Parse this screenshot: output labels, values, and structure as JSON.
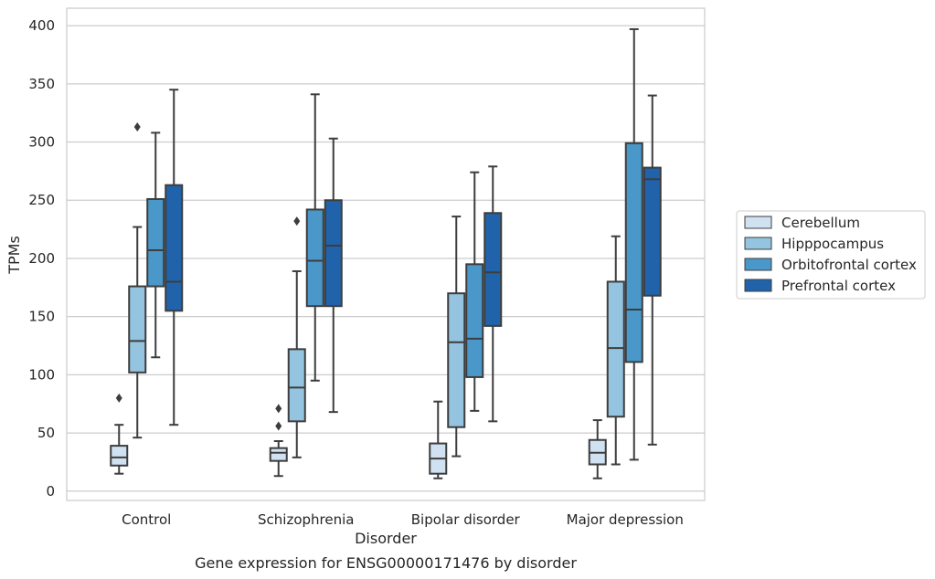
{
  "chart_data": {
    "type": "box",
    "caption": "Gene expression for ENSG00000171476 by disorder",
    "xlabel": "Disorder",
    "ylabel": "TPMs",
    "ylim": [
      -8,
      415
    ],
    "yticks": [
      0,
      50,
      100,
      150,
      200,
      250,
      300,
      350,
      400
    ],
    "grid": true,
    "legend_position": "right",
    "categories": [
      "Control",
      "Schizophrenia",
      "Bipolar disorder",
      "Major depression"
    ],
    "series": [
      {
        "name": "Cerebellum",
        "color": "#d0e1f2",
        "boxes": [
          {
            "whisker_low": 15,
            "q1": 22,
            "median": 29,
            "q3": 39,
            "whisker_high": 57,
            "outliers": [
              80
            ]
          },
          {
            "whisker_low": 13,
            "q1": 26,
            "median": 33,
            "q3": 37,
            "whisker_high": 43,
            "outliers": [
              56,
              71
            ]
          },
          {
            "whisker_low": 11,
            "q1": 15,
            "median": 28,
            "q3": 41,
            "whisker_high": 77,
            "outliers": []
          },
          {
            "whisker_low": 11,
            "q1": 23,
            "median": 33,
            "q3": 44,
            "whisker_high": 61,
            "outliers": []
          }
        ]
      },
      {
        "name": "Hipppocampus",
        "color": "#94c4df",
        "boxes": [
          {
            "whisker_low": 46,
            "q1": 102,
            "median": 129,
            "q3": 176,
            "whisker_high": 227,
            "outliers": [
              313
            ]
          },
          {
            "whisker_low": 29,
            "q1": 60,
            "median": 89,
            "q3": 122,
            "whisker_high": 189,
            "outliers": [
              232
            ]
          },
          {
            "whisker_low": 30,
            "q1": 55,
            "median": 128,
            "q3": 170,
            "whisker_high": 236,
            "outliers": []
          },
          {
            "whisker_low": 23,
            "q1": 64,
            "median": 123,
            "q3": 180,
            "whisker_high": 219,
            "outliers": []
          }
        ]
      },
      {
        "name": "Orbitofrontal cortex",
        "color": "#4a98c9",
        "boxes": [
          {
            "whisker_low": 115,
            "q1": 176,
            "median": 207,
            "q3": 251,
            "whisker_high": 308,
            "outliers": []
          },
          {
            "whisker_low": 95,
            "q1": 159,
            "median": 198,
            "q3": 242,
            "whisker_high": 341,
            "outliers": []
          },
          {
            "whisker_low": 69,
            "q1": 98,
            "median": 131,
            "q3": 195,
            "whisker_high": 274,
            "outliers": []
          },
          {
            "whisker_low": 27,
            "q1": 111,
            "median": 156,
            "q3": 299,
            "whisker_high": 397,
            "outliers": []
          }
        ]
      },
      {
        "name": "Prefrontal cortex",
        "color": "#2163aa",
        "boxes": [
          {
            "whisker_low": 57,
            "q1": 155,
            "median": 180,
            "q3": 263,
            "whisker_high": 345,
            "outliers": []
          },
          {
            "whisker_low": 68,
            "q1": 159,
            "median": 211,
            "q3": 250,
            "whisker_high": 303,
            "outliers": []
          },
          {
            "whisker_low": 60,
            "q1": 142,
            "median": 188,
            "q3": 239,
            "whisker_high": 279,
            "outliers": []
          },
          {
            "whisker_low": 40,
            "q1": 168,
            "median": 268,
            "q3": 278,
            "whisker_high": 340,
            "outliers": []
          }
        ]
      }
    ]
  }
}
